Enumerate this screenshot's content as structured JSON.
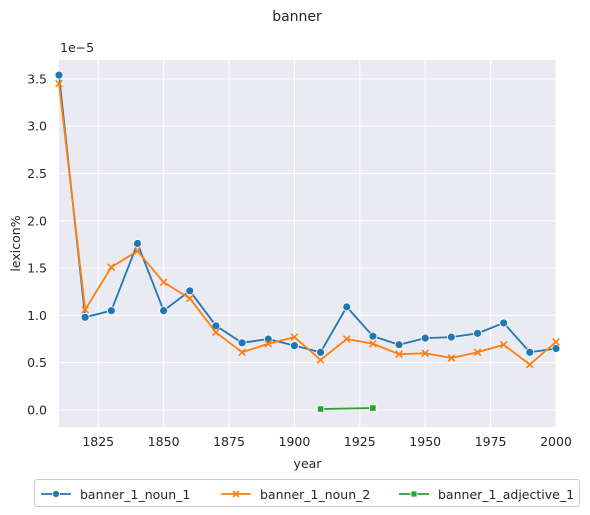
{
  "chart_data": {
    "type": "line",
    "title": "banner",
    "xlabel": "year",
    "ylabel": "lexicon%",
    "y_offset_text": "1e−5",
    "x_ticks": [
      1825,
      1850,
      1875,
      1900,
      1925,
      1950,
      1975,
      2000
    ],
    "y_ticks": [
      0.0,
      0.5,
      1.0,
      1.5,
      2.0,
      2.5,
      3.0,
      3.5
    ],
    "x_tick_labels": [
      "1825",
      "1850",
      "1875",
      "1900",
      "1925",
      "1950",
      "1975",
      "2000"
    ],
    "y_tick_labels": [
      "0.0",
      "0.5",
      "1.0",
      "1.5",
      "2.0",
      "2.5",
      "3.0",
      "3.5"
    ],
    "xlim": [
      1810,
      2000
    ],
    "ylim": [
      -0.18,
      3.7
    ],
    "grid": true,
    "legend_position": "bottom",
    "series": [
      {
        "name": "banner_1_noun_1",
        "color": "#1f77b4",
        "marker": "circle",
        "x": [
          1810,
          1820,
          1830,
          1840,
          1850,
          1860,
          1870,
          1880,
          1890,
          1900,
          1910,
          1920,
          1930,
          1940,
          1950,
          1960,
          1970,
          1980,
          1990,
          2000
        ],
        "y": [
          3.54,
          0.98,
          1.05,
          1.76,
          1.05,
          1.26,
          0.89,
          0.71,
          0.75,
          0.68,
          0.61,
          1.09,
          0.78,
          0.69,
          0.76,
          0.77,
          0.81,
          0.92,
          0.61,
          0.65
        ]
      },
      {
        "name": "banner_1_noun_2",
        "color": "#ff7f0e",
        "marker": "x",
        "x": [
          1810,
          1820,
          1830,
          1840,
          1850,
          1860,
          1870,
          1880,
          1890,
          1900,
          1910,
          1920,
          1930,
          1940,
          1950,
          1960,
          1970,
          1980,
          1990,
          2000
        ],
        "y": [
          3.45,
          1.06,
          1.51,
          1.68,
          1.35,
          1.18,
          0.82,
          0.61,
          0.7,
          0.77,
          0.53,
          0.75,
          0.7,
          0.59,
          0.6,
          0.55,
          0.61,
          0.69,
          0.48,
          0.72
        ]
      },
      {
        "name": "banner_1_adjective_1",
        "color": "#2ca02c",
        "marker": "square",
        "x": [
          1910,
          1930
        ],
        "y": [
          0.01,
          0.02
        ]
      }
    ]
  },
  "colors": {
    "plot_background": "#eaeaf2",
    "grid": "#ffffff"
  }
}
